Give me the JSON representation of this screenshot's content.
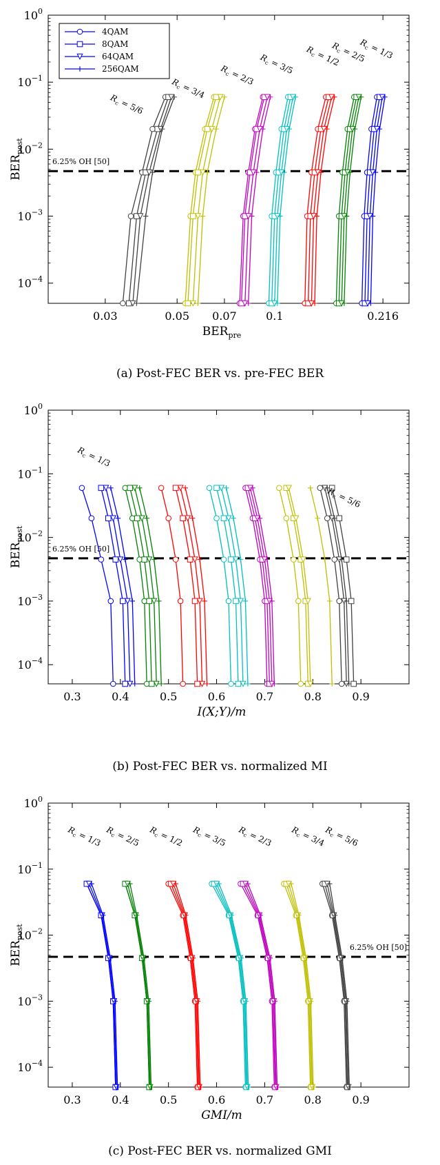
{
  "legend": [
    {
      "name": "4QAM",
      "marker": "circle"
    },
    {
      "name": "8QAM",
      "marker": "square"
    },
    {
      "name": "64QAM",
      "marker": "triangle"
    },
    {
      "name": "256QAM",
      "marker": "plus"
    }
  ],
  "rate_colors": {
    "5/6": "#404040",
    "3/4": "#bfbf00",
    "2/3": "#bf00bf",
    "3/5": "#00bfbf",
    "1/2": "#ff0000",
    "2/5": "#008000",
    "1/3": "#0000ff"
  },
  "threshold": {
    "value": 0.0047,
    "label": "6.25% OH [50]"
  },
  "chart_data": [
    {
      "type": "line",
      "panel": "a",
      "caption": "(a) Post-FEC BER vs. pre-FEC BER",
      "xscale": "log",
      "xlim": [
        0.02,
        0.26
      ],
      "yscale": "log",
      "ylim": [
        5e-05,
        1
      ],
      "xticks": [
        {
          "v": 0.03,
          "label": "0.03"
        },
        {
          "v": 0.05,
          "label": "0.05"
        },
        {
          "v": 0.07,
          "label": "0.07"
        },
        {
          "v": 0.1,
          "label": "0.1"
        },
        {
          "v": 0.216,
          "label": "0.216"
        }
      ],
      "xlabel": "BER",
      "xlabel_sub": "pre",
      "ylabel": "BER",
      "ylabel_sub": "post",
      "legend": true,
      "threshold_label_pos": "left",
      "rates": [
        {
          "rate": "5/6",
          "label": "5/6",
          "lx": 0.031,
          "ly": 0.055,
          "x": [
            [
              0.034,
              0.036,
              0.039,
              0.042,
              0.046
            ],
            [
              0.0355,
              0.0375,
              0.04,
              0.0435,
              0.047
            ],
            [
              0.0365,
              0.0385,
              0.041,
              0.0445,
              0.048
            ],
            [
              0.0375,
              0.04,
              0.042,
              0.045,
              0.049
            ]
          ]
        },
        {
          "rate": "3/4",
          "label": "3/4",
          "lx": 0.048,
          "ly": 0.095,
          "x": [
            [
              0.053,
              0.055,
              0.057,
              0.061,
              0.065
            ],
            [
              0.054,
              0.056,
              0.058,
              0.062,
              0.066
            ],
            [
              0.056,
              0.058,
              0.06,
              0.064,
              0.068
            ],
            [
              0.058,
              0.06,
              0.062,
              0.066,
              0.07
            ]
          ]
        },
        {
          "rate": "2/3",
          "label": "2/3",
          "lx": 0.068,
          "ly": 0.15,
          "x": [
            [
              0.078,
              0.08,
              0.083,
              0.087,
              0.092
            ],
            [
              0.079,
              0.081,
              0.084,
              0.088,
              0.093
            ],
            [
              0.081,
              0.083,
              0.086,
              0.09,
              0.095
            ],
            [
              0.083,
              0.085,
              0.088,
              0.092,
              0.097
            ]
          ]
        },
        {
          "rate": "3/5",
          "label": "3/5",
          "lx": 0.09,
          "ly": 0.22,
          "x": [
            [
              0.096,
              0.098,
              0.101,
              0.105,
              0.11
            ],
            [
              0.098,
              0.1,
              0.103,
              0.107,
              0.112
            ],
            [
              0.1,
              0.102,
              0.105,
              0.109,
              0.114
            ],
            [
              0.102,
              0.104,
              0.107,
              0.111,
              0.116
            ]
          ]
        },
        {
          "rate": "1/2",
          "label": "1/2",
          "lx": 0.125,
          "ly": 0.29,
          "x": [
            [
              0.124,
              0.126,
              0.13,
              0.136,
              0.144
            ],
            [
              0.127,
              0.129,
              0.133,
              0.139,
              0.147
            ],
            [
              0.13,
              0.132,
              0.136,
              0.142,
              0.15
            ],
            [
              0.133,
              0.135,
              0.139,
              0.145,
              0.153
            ]
          ]
        },
        {
          "rate": "2/5",
          "label": "2/5",
          "lx": 0.15,
          "ly": 0.33,
          "x": [
            [
              0.155,
              0.158,
              0.162,
              0.168,
              0.176
            ],
            [
              0.158,
              0.161,
              0.165,
              0.171,
              0.179
            ],
            [
              0.161,
              0.164,
              0.168,
              0.174,
              0.182
            ],
            [
              0.164,
              0.167,
              0.171,
              0.177,
              0.185
            ]
          ]
        },
        {
          "rate": "1/3",
          "label": "1/3",
          "lx": 0.183,
          "ly": 0.37,
          "x": [
            [
              0.186,
              0.189,
              0.193,
              0.199,
              0.207
            ],
            [
              0.19,
              0.193,
              0.197,
              0.203,
              0.211
            ],
            [
              0.194,
              0.197,
              0.201,
              0.207,
              0.215
            ],
            [
              0.198,
              0.201,
              0.205,
              0.211,
              0.219
            ]
          ]
        }
      ]
    },
    {
      "type": "line",
      "panel": "b",
      "caption": "(b) Post-FEC BER vs. normalized MI",
      "xscale": "linear",
      "xlim": [
        0.25,
        1.0
      ],
      "yscale": "log",
      "ylim": [
        5e-05,
        1
      ],
      "xticks": [
        {
          "v": 0.3,
          "label": "0.3"
        },
        {
          "v": 0.4,
          "label": "0.4"
        },
        {
          "v": 0.5,
          "label": "0.5"
        },
        {
          "v": 0.6,
          "label": "0.6"
        },
        {
          "v": 0.7,
          "label": "0.7"
        },
        {
          "v": 0.8,
          "label": "0.8"
        },
        {
          "v": 0.9,
          "label": "0.9"
        }
      ],
      "xlabel": "I(X;Y)/m",
      "ylabel": "BER",
      "ylabel_sub": "post",
      "legend": false,
      "threshold_label_pos": "left",
      "rates": [
        {
          "rate": "1/3",
          "label": "1/3",
          "lx": 0.31,
          "ly": 0.22,
          "x": [
            [
              0.385,
              0.38,
              0.36,
              0.34,
              0.32
            ],
            [
              0.41,
              0.405,
              0.39,
              0.375,
              0.36
            ],
            [
              0.42,
              0.415,
              0.4,
              0.385,
              0.37
            ],
            [
              0.43,
              0.425,
              0.41,
              0.395,
              0.38
            ]
          ]
        },
        {
          "rate": "2/5",
          "label": "",
          "x": [
            [
              0.455,
              0.45,
              0.44,
              0.425,
              0.41
            ],
            [
              0.465,
              0.46,
              0.45,
              0.435,
              0.42
            ],
            [
              0.475,
              0.47,
              0.46,
              0.445,
              0.43
            ],
            [
              0.485,
              0.48,
              0.47,
              0.455,
              0.44
            ]
          ]
        },
        {
          "rate": "1/2",
          "label": "",
          "x": [
            [
              0.53,
              0.525,
              0.515,
              0.5,
              0.485
            ],
            [
              0.56,
              0.555,
              0.545,
              0.53,
              0.515
            ],
            [
              0.57,
              0.565,
              0.555,
              0.54,
              0.525
            ],
            [
              0.58,
              0.575,
              0.565,
              0.55,
              0.535
            ]
          ]
        },
        {
          "rate": "3/5",
          "label": "",
          "x": [
            [
              0.63,
              0.625,
              0.615,
              0.6,
              0.585
            ],
            [
              0.645,
              0.64,
              0.63,
              0.615,
              0.6
            ],
            [
              0.655,
              0.65,
              0.64,
              0.625,
              0.61
            ],
            [
              0.665,
              0.66,
              0.65,
              0.635,
              0.62
            ]
          ]
        },
        {
          "rate": "2/3",
          "label": "",
          "x": [
            [
              0.705,
              0.7,
              0.69,
              0.675,
              0.66
            ],
            [
              0.71,
              0.705,
              0.695,
              0.68,
              0.665
            ],
            [
              0.715,
              0.71,
              0.7,
              0.685,
              0.67
            ],
            [
              0.72,
              0.715,
              0.705,
              0.69,
              0.675
            ]
          ]
        },
        {
          "rate": "3/4",
          "label": "",
          "x": [
            [
              0.775,
              0.77,
              0.76,
              0.745,
              0.73
            ],
            [
              0.79,
              0.785,
              0.775,
              0.76,
              0.745
            ],
            [
              0.795,
              0.79,
              0.78,
              0.765,
              0.75
            ],
            [
              0.84,
              0.835,
              0.825,
              0.81,
              0.795
            ]
          ]
        },
        {
          "rate": "5/6",
          "label": "5/6",
          "lx": 0.83,
          "ly": 0.05,
          "x": [
            [
              0.86,
              0.855,
              0.845,
              0.83,
              0.815
            ],
            [
              0.885,
              0.88,
              0.87,
              0.855,
              0.84
            ],
            [
              0.87,
              0.865,
              0.855,
              0.84,
              0.825
            ],
            [
              0.875,
              0.87,
              0.86,
              0.845,
              0.83
            ]
          ]
        }
      ]
    },
    {
      "type": "line",
      "panel": "c",
      "caption": "(c) Post-FEC BER vs. normalized GMI",
      "xscale": "linear",
      "xlim": [
        0.25,
        1.0
      ],
      "yscale": "log",
      "ylim": [
        5e-05,
        1
      ],
      "xticks": [
        {
          "v": 0.3,
          "label": "0.3"
        },
        {
          "v": 0.4,
          "label": "0.4"
        },
        {
          "v": 0.5,
          "label": "0.5"
        },
        {
          "v": 0.6,
          "label": "0.6"
        },
        {
          "v": 0.7,
          "label": "0.7"
        },
        {
          "v": 0.8,
          "label": "0.8"
        },
        {
          "v": 0.9,
          "label": "0.9"
        }
      ],
      "xlabel": "GMI/m",
      "ylabel": "BER",
      "ylabel_sub": "post",
      "legend": false,
      "threshold_label_pos": "right",
      "rates": [
        {
          "rate": "1/3",
          "label": "1/3",
          "lx": 0.29,
          "ly": 0.37,
          "x": [
            [
              0.39,
              0.385,
              0.375,
              0.36,
              0.33
            ],
            [
              0.39,
              0.385,
              0.375,
              0.36,
              0.33
            ],
            [
              0.392,
              0.387,
              0.377,
              0.362,
              0.335
            ],
            [
              0.394,
              0.389,
              0.379,
              0.364,
              0.34
            ]
          ]
        },
        {
          "rate": "2/5",
          "label": "2/5",
          "lx": 0.37,
          "ly": 0.37,
          "x": [
            [
              0.46,
              0.455,
              0.445,
              0.43,
              0.41
            ],
            [
              0.46,
              0.455,
              0.445,
              0.43,
              0.41
            ],
            [
              0.462,
              0.457,
              0.447,
              0.432,
              0.415
            ],
            [
              0.464,
              0.459,
              0.449,
              0.434,
              0.42
            ]
          ]
        },
        {
          "rate": "1/2",
          "label": "1/2",
          "lx": 0.46,
          "ly": 0.37,
          "x": [
            [
              0.56,
              0.555,
              0.545,
              0.53,
              0.5
            ],
            [
              0.562,
              0.557,
              0.547,
              0.532,
              0.505
            ],
            [
              0.564,
              0.559,
              0.549,
              0.534,
              0.51
            ],
            [
              0.566,
              0.561,
              0.551,
              0.536,
              0.515
            ]
          ]
        },
        {
          "rate": "3/5",
          "label": "3/5",
          "lx": 0.55,
          "ly": 0.37,
          "x": [
            [
              0.66,
              0.655,
              0.645,
              0.625,
              0.59
            ],
            [
              0.662,
              0.657,
              0.647,
              0.627,
              0.595
            ],
            [
              0.664,
              0.659,
              0.649,
              0.629,
              0.6
            ],
            [
              0.666,
              0.661,
              0.651,
              0.631,
              0.605
            ]
          ]
        },
        {
          "rate": "2/3",
          "label": "2/3",
          "lx": 0.645,
          "ly": 0.37,
          "x": [
            [
              0.72,
              0.715,
              0.705,
              0.685,
              0.65
            ],
            [
              0.722,
              0.717,
              0.707,
              0.687,
              0.655
            ],
            [
              0.724,
              0.719,
              0.709,
              0.689,
              0.66
            ],
            [
              0.726,
              0.721,
              0.711,
              0.691,
              0.665
            ]
          ]
        },
        {
          "rate": "3/4",
          "label": "3/4",
          "lx": 0.755,
          "ly": 0.37,
          "x": [
            [
              0.795,
              0.79,
              0.78,
              0.765,
              0.74
            ],
            [
              0.797,
              0.792,
              0.782,
              0.767,
              0.745
            ],
            [
              0.799,
              0.794,
              0.784,
              0.769,
              0.75
            ],
            [
              0.801,
              0.796,
              0.786,
              0.771,
              0.755
            ]
          ]
        },
        {
          "rate": "5/6",
          "label": "5/6",
          "lx": 0.825,
          "ly": 0.37,
          "x": [
            [
              0.87,
              0.865,
              0.855,
              0.84,
              0.82
            ],
            [
              0.872,
              0.867,
              0.857,
              0.842,
              0.825
            ],
            [
              0.874,
              0.869,
              0.859,
              0.844,
              0.83
            ],
            [
              0.876,
              0.871,
              0.861,
              0.846,
              0.835
            ]
          ]
        }
      ]
    }
  ],
  "y_levels": [
    5e-05,
    0.001,
    0.0045,
    0.02,
    0.06
  ]
}
